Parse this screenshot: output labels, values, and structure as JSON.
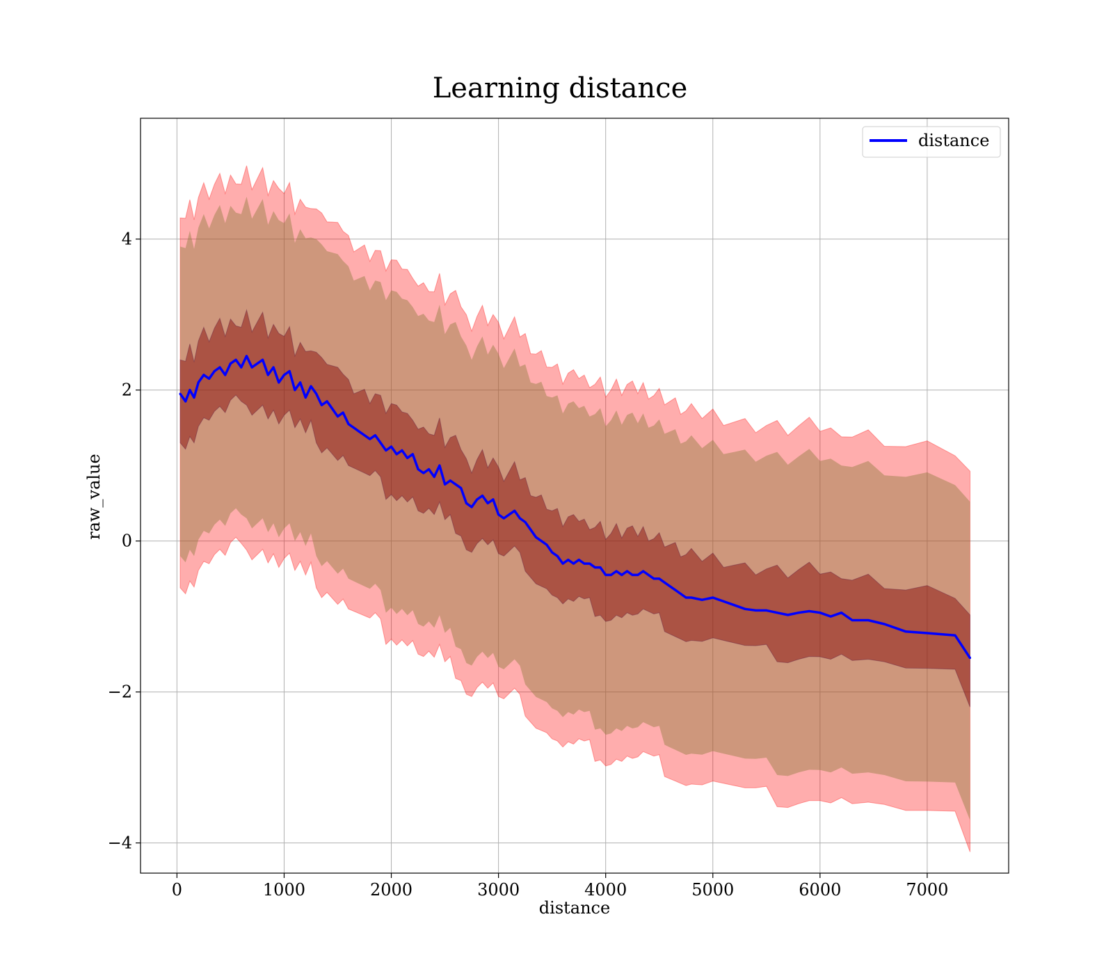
{
  "chart_data": {
    "type": "line",
    "title": "Learning distance",
    "xlabel": "distance",
    "ylabel": "raw_value",
    "xlim": [
      -340,
      7760
    ],
    "ylim": [
      -4.4,
      5.6
    ],
    "xticks": [
      0,
      1000,
      2000,
      3000,
      4000,
      5000,
      6000,
      7000
    ],
    "yticks": [
      -4,
      -2,
      0,
      2,
      4
    ],
    "ytick_labels": [
      "−4",
      "−2",
      "0",
      "2",
      "4"
    ],
    "grid": true,
    "legend": {
      "placement": "top-right",
      "entries": [
        "distance"
      ]
    },
    "colors": {
      "line": "#0000ff",
      "band_outer": "#ff0000",
      "band_inner": "#800000",
      "grid": "#b0b0b0"
    },
    "series": [
      {
        "name": "distance",
        "x": [
          30,
          80,
          120,
          160,
          200,
          250,
          300,
          350,
          400,
          450,
          500,
          550,
          600,
          650,
          700,
          750,
          800,
          850,
          900,
          950,
          1000,
          1050,
          1100,
          1150,
          1200,
          1250,
          1300,
          1350,
          1400,
          1450,
          1500,
          1550,
          1600,
          1650,
          1700,
          1750,
          1800,
          1850,
          1900,
          1950,
          2000,
          2050,
          2100,
          2150,
          2200,
          2250,
          2300,
          2350,
          2400,
          2450,
          2500,
          2550,
          2600,
          2650,
          2700,
          2750,
          2800,
          2850,
          2900,
          2950,
          3000,
          3050,
          3100,
          3150,
          3200,
          3250,
          3300,
          3350,
          3400,
          3450,
          3500,
          3550,
          3600,
          3650,
          3700,
          3750,
          3800,
          3850,
          3900,
          3950,
          4000,
          4050,
          4100,
          4150,
          4200,
          4250,
          4300,
          4350,
          4400,
          4450,
          4500,
          4550,
          4600,
          4650,
          4700,
          4750,
          4800,
          4900,
          5000,
          5100,
          5200,
          5300,
          5400,
          5500,
          5600,
          5700,
          5800,
          5900,
          6000,
          6100,
          6200,
          6300,
          6450,
          6600,
          6800,
          7000,
          7260,
          7400
        ],
        "y": [
          1.95,
          1.85,
          2.0,
          1.9,
          2.1,
          2.2,
          2.15,
          2.25,
          2.3,
          2.2,
          2.35,
          2.4,
          2.3,
          2.45,
          2.3,
          2.35,
          2.4,
          2.2,
          2.3,
          2.1,
          2.2,
          2.25,
          2.0,
          2.1,
          1.9,
          2.05,
          1.95,
          1.8,
          1.85,
          1.75,
          1.65,
          1.7,
          1.55,
          1.5,
          1.45,
          1.4,
          1.35,
          1.4,
          1.3,
          1.2,
          1.25,
          1.15,
          1.2,
          1.1,
          1.15,
          0.95,
          0.9,
          0.95,
          0.85,
          1.0,
          0.75,
          0.8,
          0.75,
          0.7,
          0.5,
          0.45,
          0.55,
          0.6,
          0.5,
          0.55,
          0.35,
          0.3,
          0.35,
          0.4,
          0.3,
          0.25,
          0.15,
          0.05,
          0.0,
          -0.05,
          -0.15,
          -0.2,
          -0.3,
          -0.25,
          -0.3,
          -0.25,
          -0.3,
          -0.3,
          -0.35,
          -0.35,
          -0.45,
          -0.45,
          -0.4,
          -0.45,
          -0.4,
          -0.45,
          -0.45,
          -0.4,
          -0.45,
          -0.5,
          -0.5,
          -0.55,
          -0.6,
          -0.65,
          -0.7,
          -0.75,
          -0.75,
          -0.78,
          -0.75,
          -0.8,
          -0.85,
          -0.9,
          -0.92,
          -0.92,
          -0.95,
          -0.98,
          -0.95,
          -0.93,
          -0.95,
          -1.0,
          -0.95,
          -1.05,
          -1.05,
          -1.1,
          -1.2,
          -1.22,
          -1.25,
          -1.55
        ],
        "inner_band_halfwidth": [
          0.55,
          0.55,
          0.55,
          0.55,
          0.55,
          0.55,
          0.55,
          0.55,
          0.55,
          0.55,
          0.55,
          0.55,
          0.55,
          0.55,
          0.55,
          0.55,
          0.55,
          0.55,
          0.55,
          0.55,
          0.55,
          0.55,
          0.55,
          0.55,
          0.55,
          0.55,
          0.55,
          0.55,
          0.55,
          0.55,
          0.55,
          0.55,
          0.55,
          0.55,
          0.55,
          0.55,
          0.55,
          0.55,
          0.55,
          0.55,
          0.55,
          0.55,
          0.55,
          0.55,
          0.55,
          0.55,
          0.55,
          0.55,
          0.55,
          0.55,
          0.55,
          0.55,
          0.55,
          0.55,
          0.55,
          0.55,
          0.55,
          0.55,
          0.55,
          0.55,
          0.55,
          0.55,
          0.55,
          0.55,
          0.55,
          0.55,
          0.55,
          0.55,
          0.55,
          0.55,
          0.55,
          0.55,
          0.55,
          0.55,
          0.55,
          0.55,
          0.55,
          0.55,
          0.55,
          0.55,
          0.55,
          0.55,
          0.55,
          0.55,
          0.55,
          0.55,
          0.55,
          0.55,
          0.55,
          0.55,
          0.55,
          0.55,
          0.55,
          0.55,
          0.55,
          0.55,
          0.55,
          0.55,
          0.55,
          0.55,
          0.55,
          0.55,
          0.55,
          0.55,
          0.55,
          0.55,
          0.55,
          0.55,
          0.55,
          0.55,
          0.55,
          0.55,
          0.55,
          0.55,
          0.55,
          0.55,
          0.55,
          0.55
        ],
        "orange_band_halfwidth": 2.05,
        "outer_band_halfwidth": 2.45
      }
    ]
  }
}
